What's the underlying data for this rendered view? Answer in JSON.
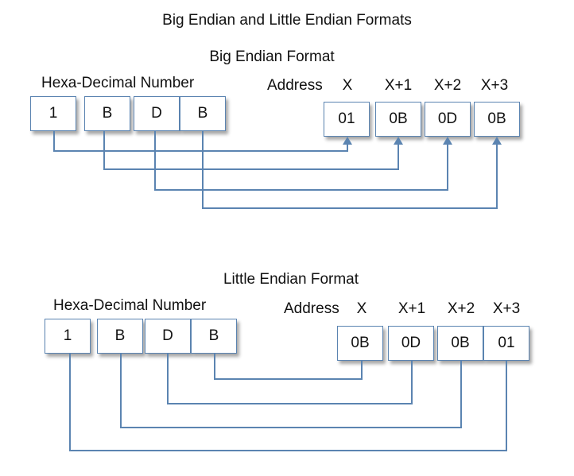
{
  "title": "Big Endian and Little Endian Formats",
  "big_endian": {
    "heading": "Big Endian Format",
    "number_label": "Hexa-Decimal Number",
    "address_label": "Address",
    "address_cols": [
      "X",
      "X+1",
      "X+2",
      "X+3"
    ],
    "digits": [
      "1",
      "B",
      "D",
      "B"
    ],
    "memory": [
      "01",
      "0B",
      "0D",
      "0B"
    ]
  },
  "little_endian": {
    "heading": "Little Endian Format",
    "number_label": "Hexa-Decimal Number",
    "address_label": "Address",
    "address_cols": [
      "X",
      "X+1",
      "X+2",
      "X+3"
    ],
    "digits": [
      "1",
      "B",
      "D",
      "B"
    ],
    "memory": [
      "0B",
      "0D",
      "0B",
      "01"
    ]
  },
  "colors": {
    "line": "#5b84b1",
    "box_border": "#5b84b1"
  }
}
